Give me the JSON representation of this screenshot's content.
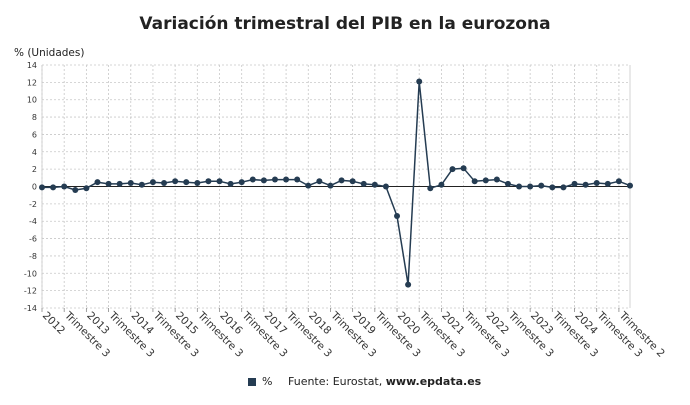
{
  "page": {
    "source_label": "Fuente: Eurostat,",
    "source_site": "www.epdata.es"
  },
  "colors": {
    "series": "#253c52",
    "grid": "#c8c8c8",
    "zero_line": "#222222"
  },
  "chart_data": {
    "type": "line",
    "title": "Variación trimestral del PIB en la eurozona",
    "ylabel": "% (Unidades)",
    "xlabel": "",
    "ylim": [
      -14,
      14
    ],
    "yticks": [
      14,
      12,
      10,
      8,
      6,
      4,
      2,
      0,
      -2,
      -4,
      -6,
      -8,
      -10,
      -12,
      -14
    ],
    "grid": true,
    "legend_position": "bottom",
    "x_tick_labels": [
      "2012",
      "Trimestre 3",
      "2013",
      "Trimestre 3",
      "2014",
      "Trimestre 3",
      "2015",
      "Trimestre 3",
      "2016",
      "Trimestre 3",
      "2017",
      "Trimestre 3",
      "2018",
      "Trimestre 3",
      "2019",
      "Trimestre 3",
      "2020",
      "Trimestre 3",
      "2021",
      "Trimestre 3",
      "2022",
      "Trimestre 3",
      "2023",
      "Trimestre 3",
      "2024",
      "Trimestre 3",
      "Trimestre 2"
    ],
    "x_tick_positions": [
      0,
      2,
      4,
      6,
      8,
      10,
      12,
      14,
      16,
      18,
      20,
      22,
      24,
      26,
      28,
      30,
      32,
      34,
      36,
      38,
      40,
      42,
      44,
      46,
      48,
      50,
      52
    ],
    "series": [
      {
        "name": "%",
        "values": [
          -0.1,
          -0.1,
          0.0,
          -0.4,
          -0.2,
          0.5,
          0.3,
          0.3,
          0.4,
          0.2,
          0.5,
          0.4,
          0.6,
          0.5,
          0.4,
          0.6,
          0.6,
          0.3,
          0.5,
          0.8,
          0.7,
          0.8,
          0.8,
          0.8,
          0.1,
          0.6,
          0.1,
          0.7,
          0.6,
          0.3,
          0.2,
          0.0,
          -3.4,
          -11.3,
          12.1,
          -0.2,
          0.2,
          2.0,
          2.1,
          0.6,
          0.7,
          0.8,
          0.3,
          0.0,
          0.0,
          0.1,
          -0.1,
          -0.1,
          0.3,
          0.2,
          0.4,
          0.3,
          0.6,
          0.1
        ]
      }
    ]
  }
}
